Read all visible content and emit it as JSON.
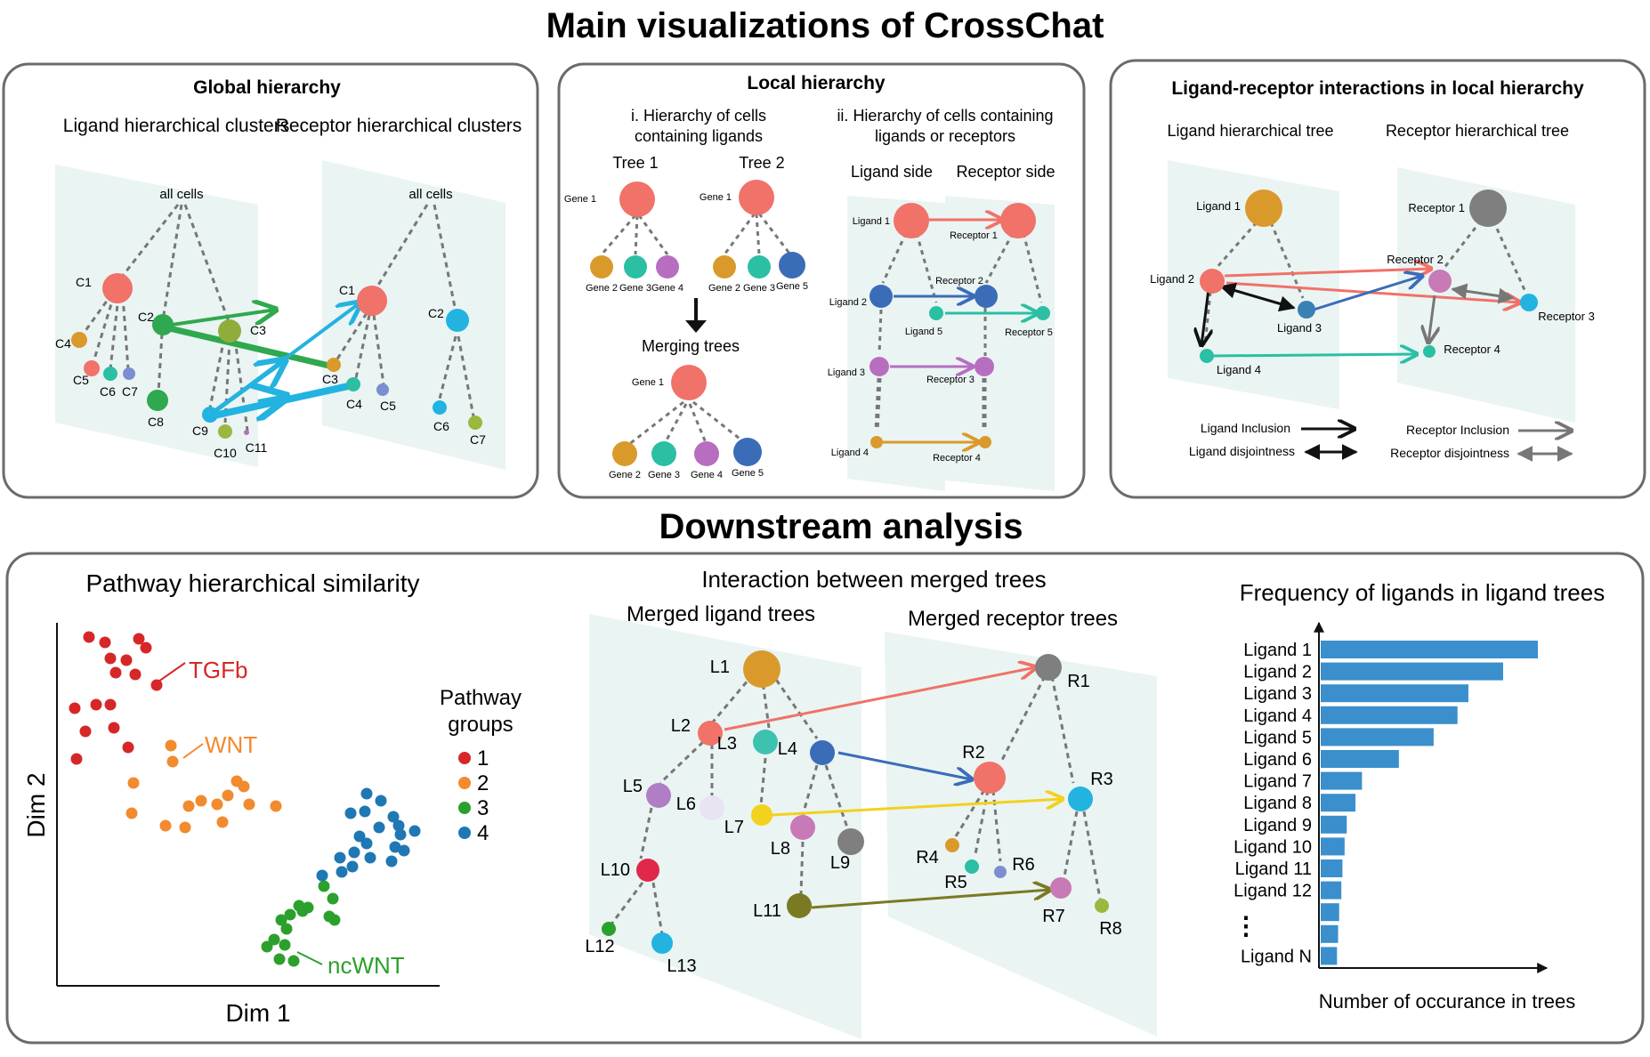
{
  "main_title": "Main visualizations of CrossChat",
  "downstream_title": "Downstream analysis",
  "global": {
    "title": "Global hierarchy",
    "ligand_header": "Ligand hierarchical clusters",
    "receptor_header": "Receptor hierarchical clusters",
    "root_label": "all cells",
    "ligand_nodes": [
      "C1",
      "C2",
      "C3",
      "C4",
      "C5",
      "C6",
      "C7",
      "C8",
      "C9",
      "C10",
      "C11"
    ],
    "receptor_nodes": [
      "C1",
      "C2",
      "C3",
      "C4",
      "C5",
      "C6",
      "C7"
    ],
    "colors": {
      "C1": "#f07268",
      "C2": "#2fa84f",
      "C3": "#8fad3b",
      "C4": "#d99a2b",
      "C5": "#f07268",
      "C6": "#2bbfa4",
      "C7": "#7b8fd0",
      "C8": "#2fa84f",
      "C9": "#23b3e0",
      "C10": "#9ab83e",
      "C11": "#b76ec0"
    }
  },
  "local": {
    "title": "Local hierarchy",
    "sub_i": [
      "i. Hierarchy of cells",
      "containing ligands"
    ],
    "sub_ii": [
      "ii. Hierarchy of cells containing",
      "ligands or receptors"
    ],
    "tree1": "Tree 1",
    "tree2": "Tree 2",
    "merging": "Merging trees",
    "ligand_side": "Ligand side",
    "receptor_side": "Receptor side",
    "tree1_root": "Gene 1",
    "tree1_children": [
      "Gene 2",
      "Gene 3",
      "Gene 4"
    ],
    "tree2_root": "Gene 1",
    "tree2_children": [
      "Gene 2",
      "Gene 3",
      "Gene 5"
    ],
    "merged_root": "Gene 1",
    "merged_children": [
      "Gene 2",
      "Gene 3",
      "Gene 4",
      "Gene 5"
    ],
    "ligands": [
      "Ligand 1",
      "Ligand 2",
      "Ligand 3",
      "Ligand 4",
      "Ligand 5"
    ],
    "receptors": [
      "Receptor 1",
      "Receptor 2",
      "Receptor 3",
      "Receptor 4",
      "Receptor 5"
    ]
  },
  "lr": {
    "title": "Ligand-receptor interactions in local hierarchy",
    "ligand_tree": "Ligand hierarchical tree",
    "receptor_tree": "Receptor hierarchical tree",
    "ligands": [
      "Ligand 1",
      "Ligand 2",
      "Ligand 3",
      "Ligand 4"
    ],
    "receptors": [
      "Receptor 1",
      "Receptor 2",
      "Receptor 3",
      "Receptor 4"
    ],
    "legend": [
      "Ligand Inclusion",
      "Ligand disjointness",
      "Receptor Inclusion",
      "Receptor disjointness"
    ]
  },
  "pathway": {
    "title": "Pathway hierarchical similarity",
    "xlabel": "Dim 1",
    "ylabel": "Dim 2",
    "legend_title": [
      "Pathway",
      "groups"
    ],
    "groups": [
      {
        "name": "1",
        "color": "#d62728"
      },
      {
        "name": "2",
        "color": "#f28a2e"
      },
      {
        "name": "3",
        "color": "#2ca02c"
      },
      {
        "name": "4",
        "color": "#1f77b4"
      }
    ],
    "annotations": [
      {
        "text": "TGFb",
        "color": "#d62728"
      },
      {
        "text": "WNT",
        "color": "#f28a2e"
      },
      {
        "text": "ncWNT",
        "color": "#2ca02c"
      }
    ]
  },
  "interaction": {
    "title": "Interaction between merged trees",
    "ligand_trees": "Merged ligand trees",
    "receptor_trees": "Merged receptor trees",
    "ligand_nodes": [
      "L1",
      "L2",
      "L3",
      "L4",
      "L5",
      "L6",
      "L7",
      "L8",
      "L9",
      "L10",
      "L11",
      "L12",
      "L13"
    ],
    "receptor_nodes": [
      "R1",
      "R2",
      "R3",
      "R4",
      "R5",
      "R6",
      "R7",
      "R8"
    ]
  },
  "chart_data": {
    "type": "bar",
    "title": "Frequency of ligands in ligand trees",
    "xlabel": "Number of occurance in trees",
    "ylabel": "",
    "categories": [
      "Ligand 1",
      "Ligand 2",
      "Ligand 3",
      "Ligand 4",
      "Ligand 5",
      "Ligand 6",
      "Ligand 7",
      "Ligand 8",
      "Ligand 9",
      "Ligand 10",
      "Ligand 11",
      "Ligand 12",
      "",
      "",
      "Ligand N"
    ],
    "values": [
      10,
      8.4,
      6.8,
      6.3,
      5.2,
      3.6,
      1.9,
      1.6,
      1.2,
      1.1,
      1.0,
      0.95,
      0.85,
      0.8,
      0.75
    ],
    "ellipsis": "⋮",
    "axis_ticks": false,
    "bar_color": "#3a8fcc"
  }
}
